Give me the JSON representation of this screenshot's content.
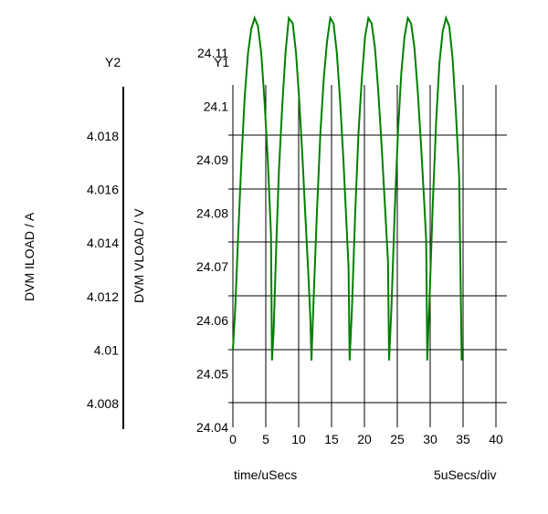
{
  "chart_data": {
    "type": "line",
    "y2": {
      "title": "Y2",
      "label": "DVM ILOAD / A",
      "ticks": [
        "4.018",
        "4.016",
        "4.014",
        "4.012",
        "4.01",
        "4.008"
      ],
      "tick_values": [
        4.018,
        4.016,
        4.014,
        4.012,
        4.01,
        4.008
      ]
    },
    "y1": {
      "title": "Y1",
      "label": "DVM VLOAD / V",
      "ticks": [
        "24.11",
        "24.1",
        "24.09",
        "24.08",
        "24.07",
        "24.06",
        "24.05",
        "24.04"
      ],
      "tick_values": [
        24.11,
        24.1,
        24.09,
        24.08,
        24.07,
        24.06,
        24.05,
        24.04
      ],
      "ylim": [
        24.04,
        24.117
      ]
    },
    "x": {
      "label": "time/uSecs",
      "scale_label": "5uSecs/div",
      "ticks": [
        "0",
        "5",
        "10",
        "15",
        "20",
        "25",
        "30",
        "35",
        "40"
      ],
      "tick_values": [
        0,
        5,
        10,
        15,
        20,
        25,
        30,
        35,
        40
      ],
      "xlim": [
        0,
        40
      ]
    },
    "grid": true,
    "series": [
      {
        "color": "#008000",
        "x": [
          0,
          0.35,
          0.8,
          1.3,
          1.8,
          2.3,
          2.8,
          3.3,
          3.8,
          4.3,
          4.8,
          5.3,
          5.79,
          5.95,
          6.2,
          6.6,
          7.0,
          7.5,
          8.0,
          8.5,
          9.1,
          9.6,
          10.1,
          10.6,
          11.0,
          11.5,
          11.79,
          11.95,
          12.3,
          12.8,
          13.3,
          13.8,
          14.3,
          14.8,
          15.3,
          15.8,
          16.3,
          16.8,
          17.2,
          17.59,
          17.75,
          18.1,
          18.6,
          19.1,
          19.6,
          20.1,
          20.6,
          21.1,
          21.6,
          22.1,
          22.6,
          23.1,
          23.59,
          23.75,
          24.1,
          24.6,
          25.1,
          25.6,
          26.1,
          26.6,
          27.1,
          27.6,
          28.1,
          28.6,
          29.1,
          29.39,
          29.55,
          29.9,
          30.4,
          30.9,
          31.4,
          31.9,
          32.4,
          32.9,
          33.4,
          33.9,
          34.4,
          34.79
        ],
        "y": [
          24.0545,
          24.062,
          24.076,
          24.09,
          24.102,
          24.11,
          24.1145,
          24.1165,
          24.115,
          24.11,
          24.101,
          24.09,
          24.076,
          24.0525,
          24.058,
          24.074,
          24.088,
          24.1,
          24.11,
          24.1165,
          24.1155,
          24.11,
          24.101,
          24.09,
          24.08,
          24.068,
          24.06,
          24.0525,
          24.065,
          24.081,
          24.095,
          24.105,
          24.112,
          24.1165,
          24.1155,
          24.11,
          24.101,
          24.09,
          24.08,
          24.07,
          24.0525,
          24.062,
          24.08,
          24.095,
          24.105,
          24.113,
          24.1165,
          24.1155,
          24.111,
          24.103,
          24.093,
          24.082,
          24.071,
          24.0525,
          24.062,
          24.08,
          24.095,
          24.106,
          24.113,
          24.1165,
          24.1155,
          24.111,
          24.103,
          24.093,
          24.082,
          24.075,
          24.0525,
          24.064,
          24.082,
          24.097,
          24.108,
          24.114,
          24.1165,
          24.115,
          24.109,
          24.099,
          24.087,
          24.0525
        ]
      }
    ]
  }
}
